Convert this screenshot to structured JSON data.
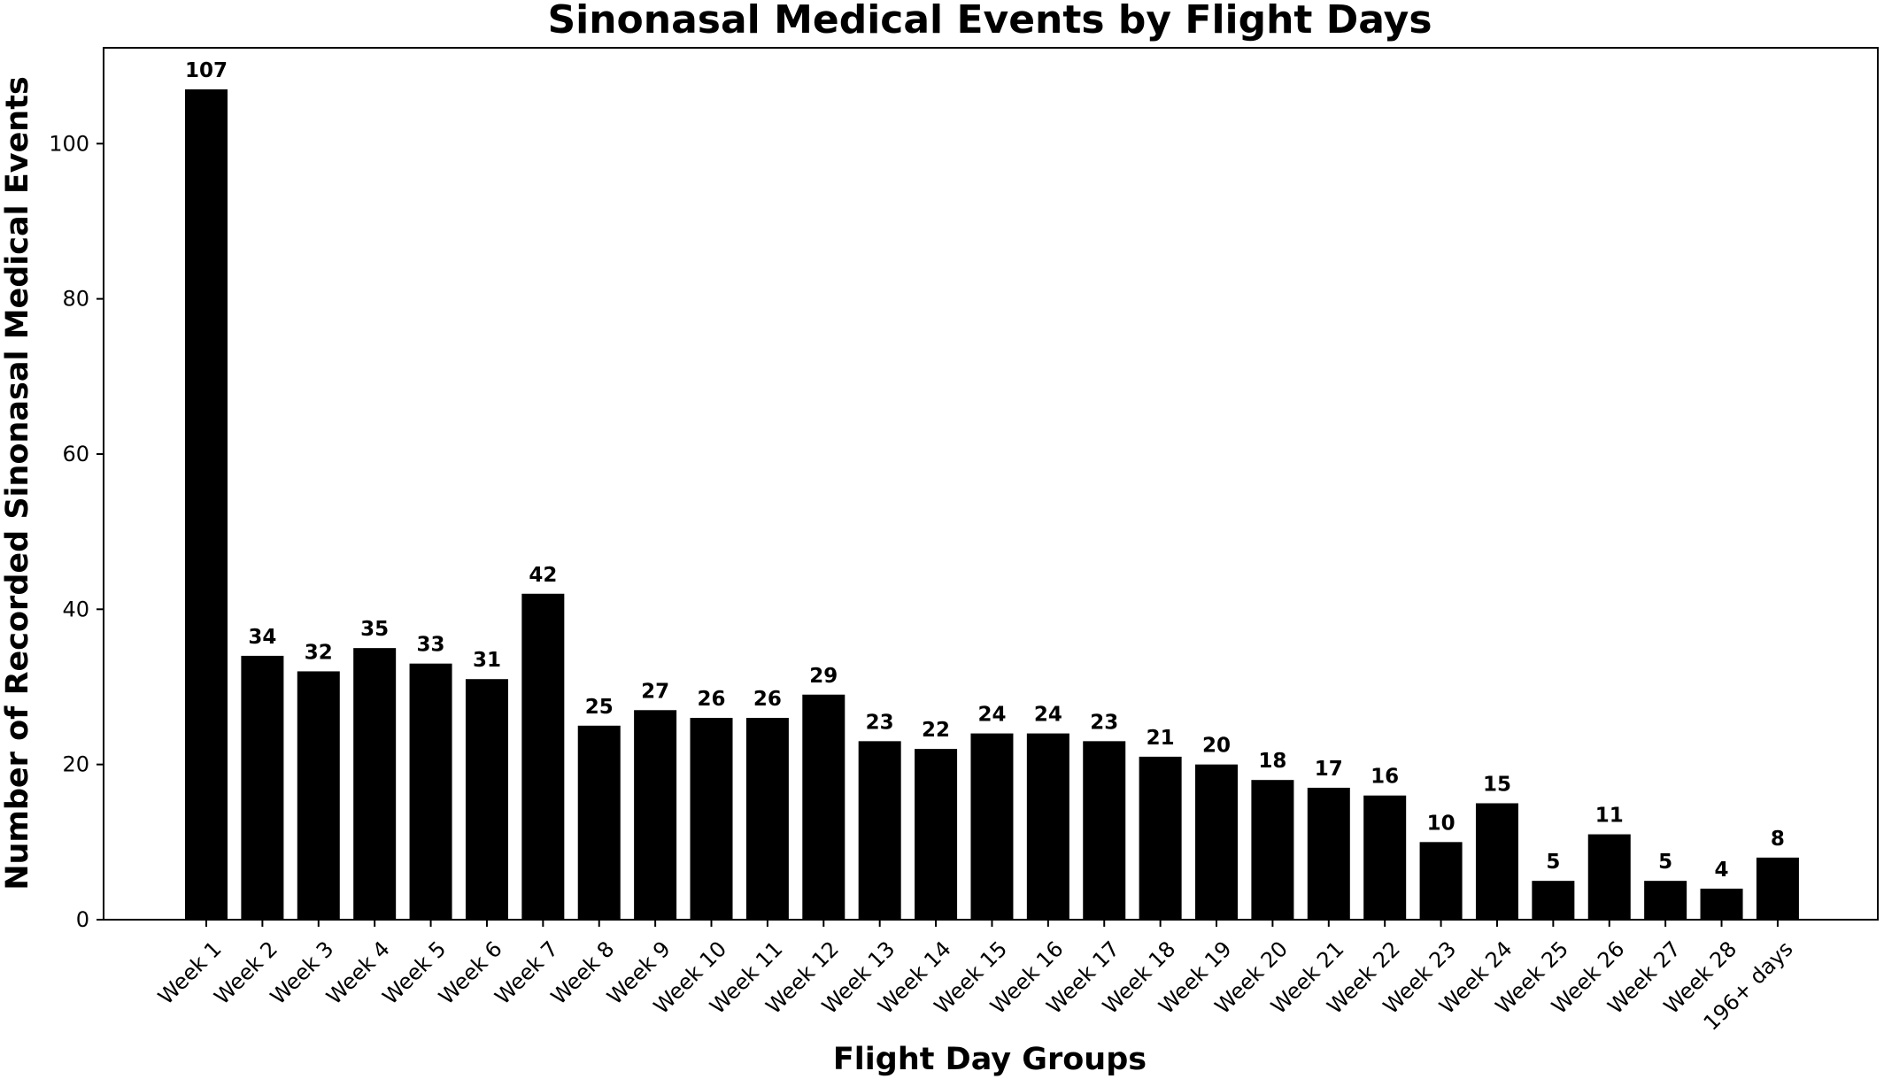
{
  "chart_data": {
    "type": "bar",
    "title": "Sinonasal Medical Events by Flight Days",
    "xlabel": "Flight Day Groups",
    "ylabel": "Number of Recorded Sinonasal Medical Events",
    "categories": [
      "Week 1",
      "Week 2",
      "Week 3",
      "Week 4",
      "Week 5",
      "Week 6",
      "Week 7",
      "Week 8",
      "Week 9",
      "Week 10",
      "Week 11",
      "Week 12",
      "Week 13",
      "Week 14",
      "Week 15",
      "Week 16",
      "Week 17",
      "Week 18",
      "Week 19",
      "Week 20",
      "Week 21",
      "Week 22",
      "Week 23",
      "Week 24",
      "Week 25",
      "Week 26",
      "Week 27",
      "Week 28",
      "196+ days"
    ],
    "values": [
      107,
      34,
      32,
      35,
      33,
      31,
      42,
      25,
      27,
      26,
      26,
      29,
      23,
      22,
      24,
      24,
      23,
      21,
      20,
      18,
      17,
      16,
      10,
      15,
      5,
      11,
      5,
      4,
      8
    ],
    "value_labels": [
      "107",
      "34",
      "32",
      "35",
      "33",
      "31",
      "42",
      "25",
      "27",
      "26",
      "26",
      "29",
      "23",
      "22",
      "24",
      "24",
      "23",
      "21",
      "20",
      "18",
      "17",
      "16",
      "10",
      "15",
      "5",
      "11",
      "5",
      "4",
      "8"
    ],
    "ylim": [
      0,
      112.35
    ],
    "yticks": [
      0,
      20,
      40,
      60,
      80,
      100
    ],
    "ytick_labels": [
      "0",
      "20",
      "40",
      "60",
      "80",
      "100"
    ],
    "bar_color": "#000000",
    "grid": false,
    "legend": "none"
  }
}
